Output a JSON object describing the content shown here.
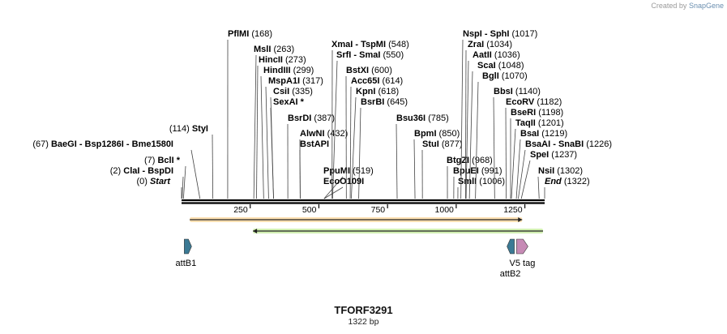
{
  "brand": {
    "created_by": "Created by",
    "app": "SnapGene"
  },
  "plasmid": {
    "name": "TFORF3291",
    "length_label": "1322 bp",
    "length": 1322
  },
  "ruler": {
    "ticks": [
      250,
      500,
      750,
      1000,
      1250
    ]
  },
  "sites": [
    {
      "name": "PflMI",
      "pos": 168,
      "pos_label": "(168)"
    },
    {
      "name": "MslI",
      "pos": 263,
      "pos_label": "(263)"
    },
    {
      "name": "HincII",
      "pos": 273,
      "pos_label": "(273)"
    },
    {
      "name": "HindIII",
      "pos": 299,
      "pos_label": "(299)"
    },
    {
      "name": "MspA1I",
      "pos": 317,
      "pos_label": "(317)"
    },
    {
      "name": "CsiI",
      "pos": 335,
      "pos_label": "(335)"
    },
    {
      "name": "SexAI *",
      "pos": 335,
      "pos_label": ""
    },
    {
      "name": "BsrDI",
      "pos": 387,
      "pos_label": "(387)"
    },
    {
      "name": "AlwNI",
      "pos": 432,
      "pos_label": "(432)"
    },
    {
      "name": "BstAPI",
      "pos": 432,
      "pos_label": ""
    },
    {
      "name": "PpuMI",
      "pos": 519,
      "pos_label": "(519)"
    },
    {
      "name": "EcoO109I",
      "pos": 519,
      "pos_label": ""
    },
    {
      "name": "XmaI - TspMI",
      "pos": 548,
      "pos_label": "(548)"
    },
    {
      "name": "SrfI - SmaI",
      "pos": 550,
      "pos_label": "(550)"
    },
    {
      "name": "BstXI",
      "pos": 600,
      "pos_label": "(600)"
    },
    {
      "name": "Acc65I",
      "pos": 614,
      "pos_label": "(614)"
    },
    {
      "name": "KpnI",
      "pos": 618,
      "pos_label": "(618)"
    },
    {
      "name": "BsrBI",
      "pos": 645,
      "pos_label": "(645)"
    },
    {
      "name": "Bsu36I",
      "pos": 785,
      "pos_label": "(785)"
    },
    {
      "name": "BpmI",
      "pos": 850,
      "pos_label": "(850)"
    },
    {
      "name": "StuI",
      "pos": 877,
      "pos_label": "(877)"
    },
    {
      "name": "BtgZI",
      "pos": 968,
      "pos_label": "(968)"
    },
    {
      "name": "BpuEI",
      "pos": 991,
      "pos_label": "(991)"
    },
    {
      "name": "SmlI",
      "pos": 1006,
      "pos_label": "(1006)"
    },
    {
      "name": "NspI - SphI",
      "pos": 1017,
      "pos_label": "(1017)"
    },
    {
      "name": "ZraI",
      "pos": 1034,
      "pos_label": "(1034)"
    },
    {
      "name": "AatII",
      "pos": 1036,
      "pos_label": "(1036)"
    },
    {
      "name": "ScaI",
      "pos": 1048,
      "pos_label": "(1048)"
    },
    {
      "name": "BglI",
      "pos": 1070,
      "pos_label": "(1070)"
    },
    {
      "name": "BbsI",
      "pos": 1140,
      "pos_label": "(1140)"
    },
    {
      "name": "EcoRV",
      "pos": 1182,
      "pos_label": "(1182)"
    },
    {
      "name": "BseRI",
      "pos": 1198,
      "pos_label": "(1198)"
    },
    {
      "name": "TaqII",
      "pos": 1201,
      "pos_label": "(1201)"
    },
    {
      "name": "BsaI",
      "pos": 1219,
      "pos_label": "(1219)"
    },
    {
      "name": "BsaAI - SnaBI",
      "pos": 1226,
      "pos_label": "(1226)"
    },
    {
      "name": "SpeI",
      "pos": 1237,
      "pos_label": "(1237)"
    },
    {
      "name": "NsiI",
      "pos": 1302,
      "pos_label": "(1302)"
    },
    {
      "name": "End",
      "pos": 1322,
      "pos_label": "(1322)",
      "italic": true
    },
    {
      "name": "StyI",
      "pos": 114,
      "pos_label": "(114)"
    },
    {
      "name": "BaeGI - Bsp1286I - Bme1580I",
      "pos": 67,
      "pos_label": "(67)"
    },
    {
      "name": "BclI *",
      "pos": 7,
      "pos_label": "(7)"
    },
    {
      "name": "ClaI - BspDI",
      "pos": 2,
      "pos_label": "(2)"
    },
    {
      "name": "Start",
      "pos": 0,
      "pos_label": "(0)",
      "italic": true
    }
  ],
  "features": [
    {
      "name": "ORF forward",
      "type": "orf",
      "start": 30,
      "end": 1240,
      "direction": "forward",
      "color": "#f5a623"
    },
    {
      "name": "ORF reverse",
      "type": "orf",
      "start": 260,
      "end": 1330,
      "direction": "reverse",
      "color": "#7ed321"
    },
    {
      "name": "attB1",
      "type": "recomb",
      "pos": 10,
      "direction": "forward",
      "color": "#3b7a95"
    },
    {
      "name": "attB2",
      "type": "recomb",
      "pos": 1185,
      "direction": "reverse",
      "color": "#3b7a95"
    },
    {
      "name": "V5 tag",
      "type": "tag",
      "pos": 1220,
      "direction": "forward",
      "color": "#c68ab5"
    }
  ]
}
